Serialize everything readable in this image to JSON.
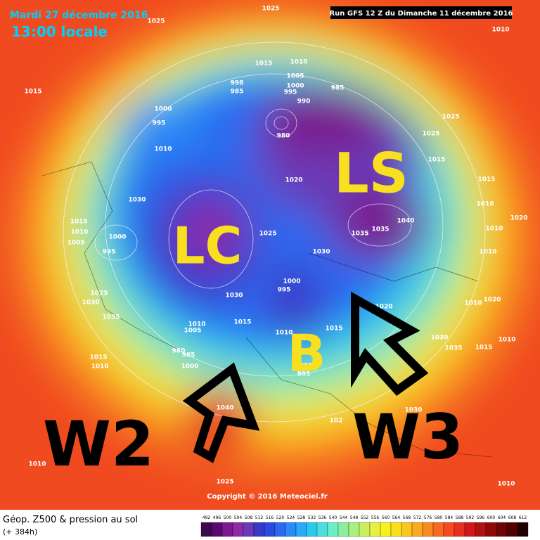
{
  "header": {
    "date": "Mardi 27 décembre 2016",
    "time": "13:00 locale",
    "run": "Run GFS 12 Z du Dimanche 11 décembre 2016",
    "copyright": "Copyright © 2016 Meteociel.fr"
  },
  "annotations": [
    "LC",
    "LS",
    "B",
    "W2",
    "W3"
  ],
  "pressure_labels": [
    "1025",
    "1025",
    "1010",
    "1015",
    "1015",
    "1010",
    "1005",
    "998",
    "1000",
    "985",
    "995",
    "990",
    "985",
    "1000",
    "995",
    "980",
    "1025",
    "1025",
    "1015",
    "1010",
    "1020",
    "1015",
    "1010",
    "1030",
    "1015",
    "1010",
    "1005",
    "1000",
    "995",
    "1025",
    "1035",
    "1035",
    "1040",
    "1020",
    "1010",
    "1010",
    "1030",
    "1000",
    "995",
    "1025",
    "1030",
    "1035",
    "1030",
    "1015",
    "1010",
    "1005",
    "1010",
    "1015",
    "1020",
    "1010",
    "1020",
    "1010",
    "1030",
    "1035",
    "1015",
    "980",
    "985",
    "1000",
    "1015",
    "1010",
    "1000",
    "995",
    "1040",
    "1030",
    "102",
    "1010",
    "1010",
    "1025"
  ],
  "legend": {
    "title": "Géop. Z500 & pression au sol",
    "subtitle": "(+ 384h)",
    "values": [
      492,
      496,
      500,
      504,
      508,
      512,
      516,
      520,
      524,
      528,
      532,
      536,
      540,
      544,
      548,
      552,
      556,
      560,
      564,
      568,
      572,
      576,
      580,
      584,
      588,
      592,
      596,
      600,
      604,
      608,
      612
    ],
    "colors": [
      "#3a0a4a",
      "#5a0a6e",
      "#7a1a8e",
      "#8e2aa8",
      "#6a3ab8",
      "#3a3ac8",
      "#2a4ae0",
      "#2a6af0",
      "#2a8af8",
      "#2aaaf8",
      "#2acaf0",
      "#4ae0e0",
      "#6af0c8",
      "#8af0a0",
      "#aaf080",
      "#caf060",
      "#e8f040",
      "#f8f020",
      "#f8e020",
      "#f8c820",
      "#f8aa20",
      "#f88a20",
      "#f86a20",
      "#f84a20",
      "#e83020",
      "#d01818",
      "#b01010",
      "#900808",
      "#700404",
      "#500202",
      "#200000"
    ]
  }
}
